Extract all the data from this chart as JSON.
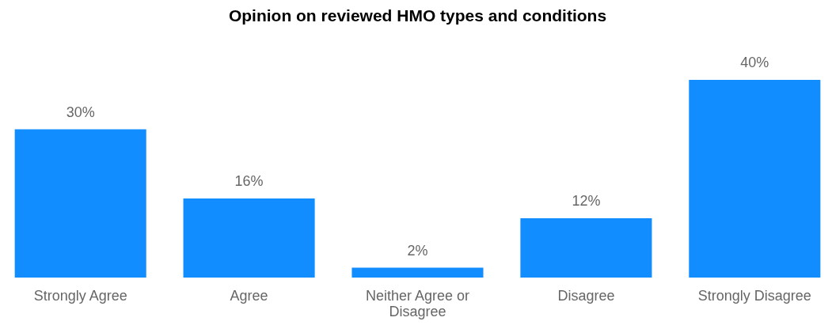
{
  "chart_data": {
    "type": "bar",
    "title": "Opinion on reviewed HMO types and conditions",
    "categories": [
      "Strongly Agree",
      "Agree",
      "Neither Agree or Disagree",
      "Disagree",
      "Strongly Disagree"
    ],
    "values": [
      30,
      16,
      2,
      12,
      40
    ],
    "value_labels": [
      "30%",
      "16%",
      "2%",
      "12%",
      "40%"
    ],
    "color": "#118dff",
    "grid": false
  }
}
